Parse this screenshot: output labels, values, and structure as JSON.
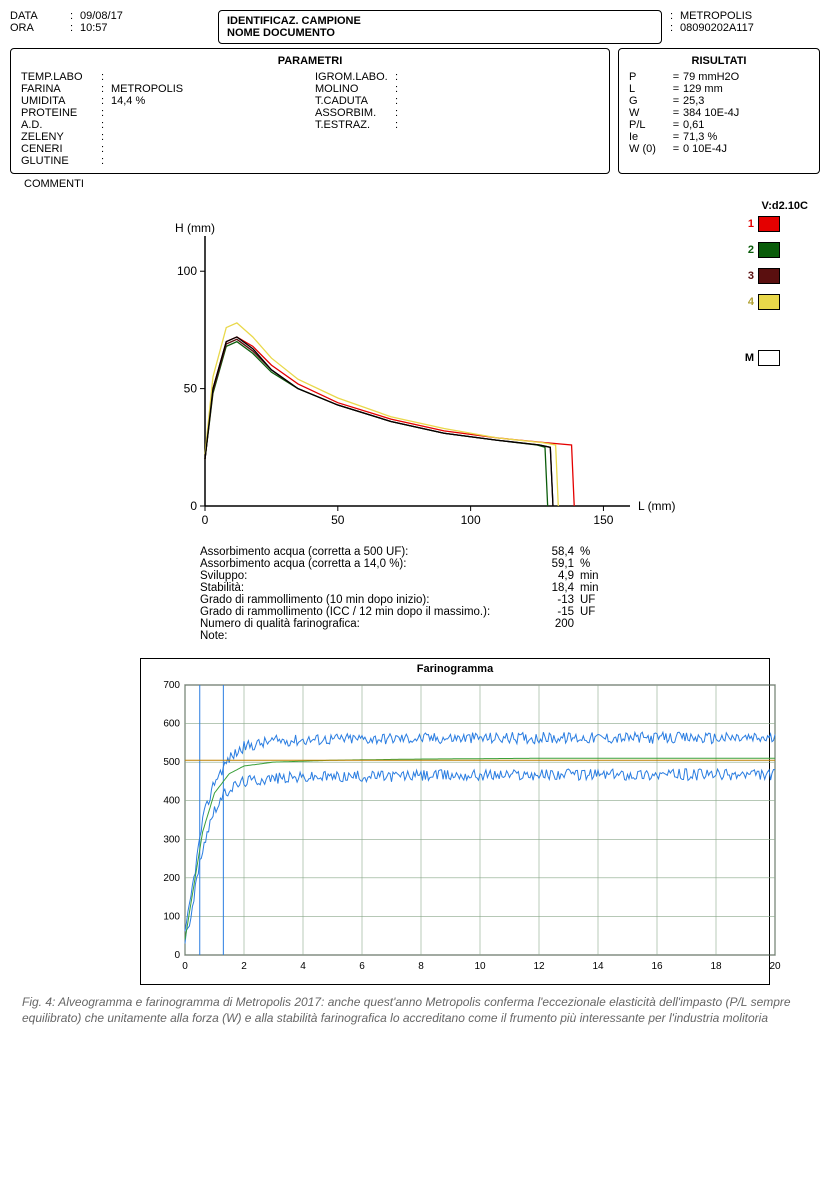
{
  "header": {
    "data_label": "DATA",
    "data_value": "09/08/17",
    "ora_label": "ORA",
    "ora_value": "10:57",
    "id_label": "IDENTIFICAZ. CAMPIONE",
    "doc_label": "NOME DOCUMENTO",
    "id_value": "METROPOLIS",
    "doc_value": "08090202A117"
  },
  "parametri": {
    "title": "PARAMETRI",
    "left": [
      {
        "label": "TEMP.LABO",
        "value": ""
      },
      {
        "label": "FARINA",
        "value": "METROPOLIS"
      },
      {
        "label": "UMIDITA",
        "value": "14,4 %"
      },
      {
        "label": "PROTEINE",
        "value": ""
      },
      {
        "label": "A.D.",
        "value": ""
      },
      {
        "label": "ZELENY",
        "value": ""
      },
      {
        "label": "CENERI",
        "value": ""
      },
      {
        "label": "GLUTINE",
        "value": ""
      }
    ],
    "right": [
      {
        "label": "IGROM.LABO.",
        "value": ""
      },
      {
        "label": "MOLINO",
        "value": ""
      },
      {
        "label": "T.CADUTA",
        "value": ""
      },
      {
        "label": "ASSORBIM.",
        "value": ""
      },
      {
        "label": "T.ESTRAZ.",
        "value": ""
      }
    ]
  },
  "risultati": {
    "title": "RISULTATI",
    "rows": [
      {
        "label": "P",
        "value": "79 mmH2O"
      },
      {
        "label": "L",
        "value": "129 mm"
      },
      {
        "label": "G",
        "value": "25,3"
      },
      {
        "label": "W",
        "value": "384 10E-4J"
      },
      {
        "label": "P/L",
        "value": "0,61"
      },
      {
        "label": "Ie",
        "value": "71,3 %"
      },
      {
        "label": "W (0)",
        "value": "0 10E-4J"
      }
    ]
  },
  "commenti_label": "COMMENTI",
  "version": "V:d2.10C",
  "alveo": {
    "ylabel": "H (mm)",
    "xlabel": "L (mm)",
    "yticks": [
      0,
      50,
      100
    ],
    "xticks": [
      0,
      50,
      100,
      150
    ],
    "xlim": [
      0,
      160
    ],
    "ylim": [
      0,
      115
    ],
    "axis_color": "#000000",
    "background": "#ffffff",
    "curves": [
      {
        "id": "1",
        "color": "#e40000",
        "points": [
          [
            0,
            20
          ],
          [
            3,
            50
          ],
          [
            8,
            70
          ],
          [
            12,
            72
          ],
          [
            18,
            68
          ],
          [
            25,
            60
          ],
          [
            35,
            52
          ],
          [
            50,
            44
          ],
          [
            70,
            37
          ],
          [
            90,
            32
          ],
          [
            110,
            29
          ],
          [
            128,
            27
          ],
          [
            138,
            26
          ],
          [
            139,
            0
          ]
        ]
      },
      {
        "id": "2",
        "color": "#0a5c0a",
        "points": [
          [
            0,
            20
          ],
          [
            3,
            48
          ],
          [
            8,
            68
          ],
          [
            12,
            70
          ],
          [
            18,
            65
          ],
          [
            25,
            57
          ],
          [
            35,
            50
          ],
          [
            50,
            43
          ],
          [
            70,
            36
          ],
          [
            90,
            31
          ],
          [
            110,
            28
          ],
          [
            125,
            26
          ],
          [
            128,
            25
          ],
          [
            129,
            0
          ]
        ]
      },
      {
        "id": "3",
        "color": "#5a0f0f",
        "points": [
          [
            0,
            20
          ],
          [
            3,
            49
          ],
          [
            8,
            69
          ],
          [
            12,
            71
          ],
          [
            18,
            66
          ],
          [
            25,
            58
          ],
          [
            35,
            50
          ],
          [
            50,
            43
          ],
          [
            70,
            36
          ],
          [
            90,
            31
          ],
          [
            110,
            28
          ],
          [
            126,
            26
          ],
          [
            130,
            25
          ],
          [
            131,
            0
          ]
        ]
      },
      {
        "id": "4",
        "color": "#e9d84a",
        "points": [
          [
            0,
            22
          ],
          [
            3,
            55
          ],
          [
            8,
            76
          ],
          [
            12,
            78
          ],
          [
            18,
            72
          ],
          [
            25,
            63
          ],
          [
            35,
            54
          ],
          [
            50,
            46
          ],
          [
            70,
            38
          ],
          [
            90,
            33
          ],
          [
            110,
            29
          ],
          [
            127,
            27
          ],
          [
            132,
            26
          ],
          [
            133,
            0
          ]
        ]
      },
      {
        "id": "M",
        "color": "#000000",
        "points": [
          [
            0,
            20
          ],
          [
            3,
            50
          ],
          [
            8,
            70
          ],
          [
            12,
            72
          ],
          [
            18,
            67
          ],
          [
            25,
            58
          ],
          [
            35,
            50
          ],
          [
            50,
            43
          ],
          [
            70,
            36
          ],
          [
            90,
            31
          ],
          [
            110,
            28
          ],
          [
            126,
            26
          ],
          [
            130,
            25
          ],
          [
            131,
            0
          ]
        ]
      }
    ],
    "legend": [
      {
        "label": "1",
        "color": "#e40000",
        "label_color": "#e40000"
      },
      {
        "label": "2",
        "color": "#0a5c0a",
        "label_color": "#0a5c0a"
      },
      {
        "label": "3",
        "color": "#5a0f0f",
        "label_color": "#5a0f0f"
      },
      {
        "label": "4",
        "color": "#e9d84a",
        "label_color": "#b0a030"
      },
      {
        "label": "M",
        "color": "#ffffff",
        "label_color": "#000000"
      }
    ]
  },
  "midtable": [
    {
      "label": "Assorbimento acqua (corretta a 500 UF):",
      "value": "58,4",
      "unit": "%"
    },
    {
      "label": "Assorbimento acqua (corretta a 14,0 %):",
      "value": "59,1",
      "unit": "%"
    },
    {
      "label": "Sviluppo:",
      "value": "4,9",
      "unit": "min"
    },
    {
      "label": "Stabilità:",
      "value": "18,4",
      "unit": "min"
    },
    {
      "label": "Grado di rammollimento (10 min dopo inizio):",
      "value": "-13",
      "unit": "UF"
    },
    {
      "label": "Grado di rammollimento (ICC / 12 min dopo il massimo.):",
      "value": "-15",
      "unit": "UF"
    },
    {
      "label": "Numero di qualità farinografica:",
      "value": "200",
      "unit": ""
    },
    {
      "label": "Note:",
      "value": "",
      "unit": ""
    }
  ],
  "farino": {
    "title": "Farinogramma",
    "xlim": [
      0,
      20
    ],
    "ylim": [
      0,
      700
    ],
    "xticks": [
      0,
      2,
      4,
      6,
      8,
      10,
      12,
      14,
      16,
      18,
      20
    ],
    "yticks": [
      0,
      100,
      200,
      300,
      400,
      500,
      600,
      700
    ],
    "grid_color": "#8aa88a",
    "background": "#ffffff",
    "axis_color": "#000000",
    "vlines": [
      {
        "x": 0.5,
        "color": "#2a7de1"
      },
      {
        "x": 1.3,
        "color": "#2a7de1"
      }
    ],
    "series": [
      {
        "color": "#2a7de1",
        "type": "noisy_upper",
        "base": [
          [
            0,
            50
          ],
          [
            0.3,
            200
          ],
          [
            0.6,
            350
          ],
          [
            1,
            450
          ],
          [
            1.5,
            510
          ],
          [
            2,
            540
          ],
          [
            3,
            555
          ],
          [
            5,
            560
          ],
          [
            8,
            562
          ],
          [
            12,
            563
          ],
          [
            16,
            563
          ],
          [
            20,
            562
          ]
        ],
        "noise": 15
      },
      {
        "color": "#2a7de1",
        "type": "noisy_lower",
        "base": [
          [
            0,
            30
          ],
          [
            0.3,
            150
          ],
          [
            0.6,
            280
          ],
          [
            1,
            380
          ],
          [
            1.5,
            430
          ],
          [
            2,
            450
          ],
          [
            3,
            458
          ],
          [
            5,
            462
          ],
          [
            8,
            465
          ],
          [
            12,
            468
          ],
          [
            16,
            468
          ],
          [
            20,
            467
          ]
        ],
        "noise": 15
      },
      {
        "color": "#3aa03a",
        "type": "smooth",
        "base": [
          [
            0,
            40
          ],
          [
            0.3,
            180
          ],
          [
            0.6,
            320
          ],
          [
            1,
            420
          ],
          [
            1.5,
            470
          ],
          [
            2,
            490
          ],
          [
            3,
            500
          ],
          [
            5,
            505
          ],
          [
            8,
            508
          ],
          [
            12,
            510
          ],
          [
            16,
            510
          ],
          [
            20,
            510
          ]
        ],
        "noise": 0
      },
      {
        "color": "#c08000",
        "type": "line",
        "base": [
          [
            0,
            505
          ],
          [
            20,
            505
          ]
        ],
        "noise": 0
      }
    ]
  },
  "caption": "Fig. 4: Alveogramma e farinogramma di Metropolis 2017: anche quest'anno Metropolis conferma l'eccezionale elasticità dell'impasto (P/L sempre equilibrato) che unitamente alla forza (W) e alla stabilità farinografica lo accreditano come il frumento più interessante per l'industria molitoria"
}
